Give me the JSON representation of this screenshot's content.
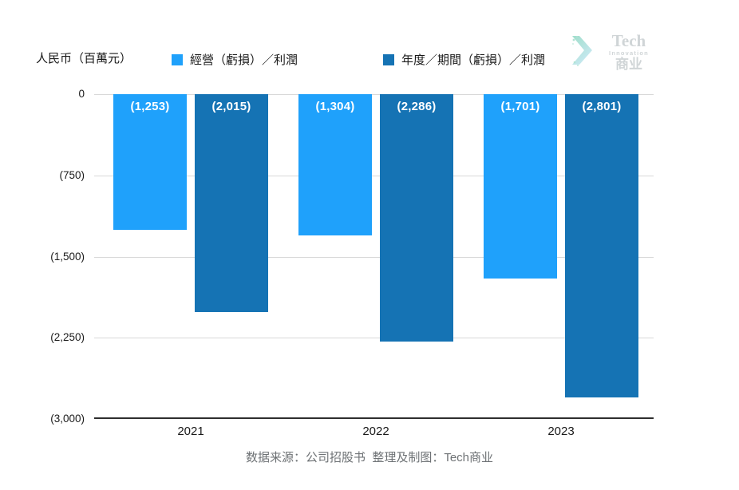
{
  "header": {
    "unit_label": "人民币（百萬元）",
    "logo": {
      "line1": "Tech",
      "line2": "Innovation",
      "line3": "商业"
    }
  },
  "footer": {
    "text": "数据来源：公司招股书  整理及制图：Tech商业"
  },
  "colors": {
    "series1": "#1fa1fb",
    "series2": "#1573b4",
    "gridline": "#d8d8d8",
    "axis": "#2e2e2e",
    "text": "#1a1a1a",
    "footer_text": "#6e7275",
    "logo_gray": "#ccd1d3",
    "logo_teal": "#8ed8c4"
  },
  "chart_data": {
    "type": "bar",
    "categories": [
      "2021",
      "2022",
      "2023"
    ],
    "series": [
      {
        "name": "經營（虧損）／利潤",
        "color": "#1fa1fb",
        "values": [
          -1253,
          -1304,
          -1701
        ],
        "labels": [
          "(1,253)",
          "(1,304)",
          "(1,701)"
        ]
      },
      {
        "name": "年度／期間（虧損）／利潤",
        "color": "#1573b4",
        "values": [
          -2015,
          -2286,
          -2801
        ],
        "labels": [
          "(2,015)",
          "(2,286)",
          "(2,801)"
        ]
      }
    ],
    "ylabel": "人民币（百萬元）",
    "ylim": [
      -3000,
      0
    ],
    "y_ticks": [
      {
        "value": 0,
        "label": "0"
      },
      {
        "value": -750,
        "label": "(750)"
      },
      {
        "value": -1500,
        "label": "(1,500)"
      },
      {
        "value": -2250,
        "label": "(2,250)"
      },
      {
        "value": -3000,
        "label": "(3,000)"
      }
    ],
    "grid": true,
    "legend_position": "top"
  }
}
